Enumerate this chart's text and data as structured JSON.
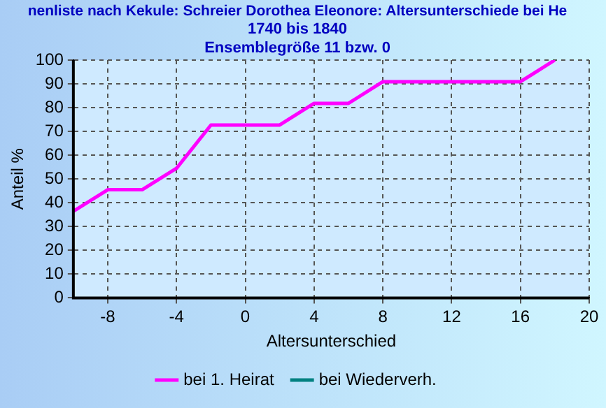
{
  "chart_data": {
    "type": "line",
    "title": "nenliste nach Kekule: Schreier Dorothea Eleonore: Altersunterschiede bei He",
    "subtitle": "1740 bis 1840\nEnsemblegröße 11 bzw. 0",
    "xlabel": "Altersunterschied",
    "ylabel": "Anteil %",
    "series": [
      {
        "name": "bei 1. Heirat",
        "color": "#ff00ff",
        "x": [
          -10,
          -8,
          -6,
          -4,
          -2,
          2,
          4,
          6,
          8,
          16,
          18
        ],
        "values": [
          36.4,
          45.5,
          45.5,
          54.5,
          72.7,
          72.7,
          81.8,
          81.8,
          90.9,
          90.9,
          100
        ]
      },
      {
        "name": "bei Wiederverh.",
        "color": "#008080"
      }
    ],
    "xlim": [
      -10,
      20
    ],
    "xticks": [
      -8,
      -4,
      0,
      4,
      8,
      12,
      16,
      20
    ],
    "ylim": [
      0,
      100
    ],
    "yticks": [
      0,
      10,
      20,
      30,
      40,
      50,
      60,
      70,
      80,
      90,
      100
    ],
    "grid": true,
    "legend": "bottom",
    "marker": "none",
    "line_style": "solid"
  }
}
